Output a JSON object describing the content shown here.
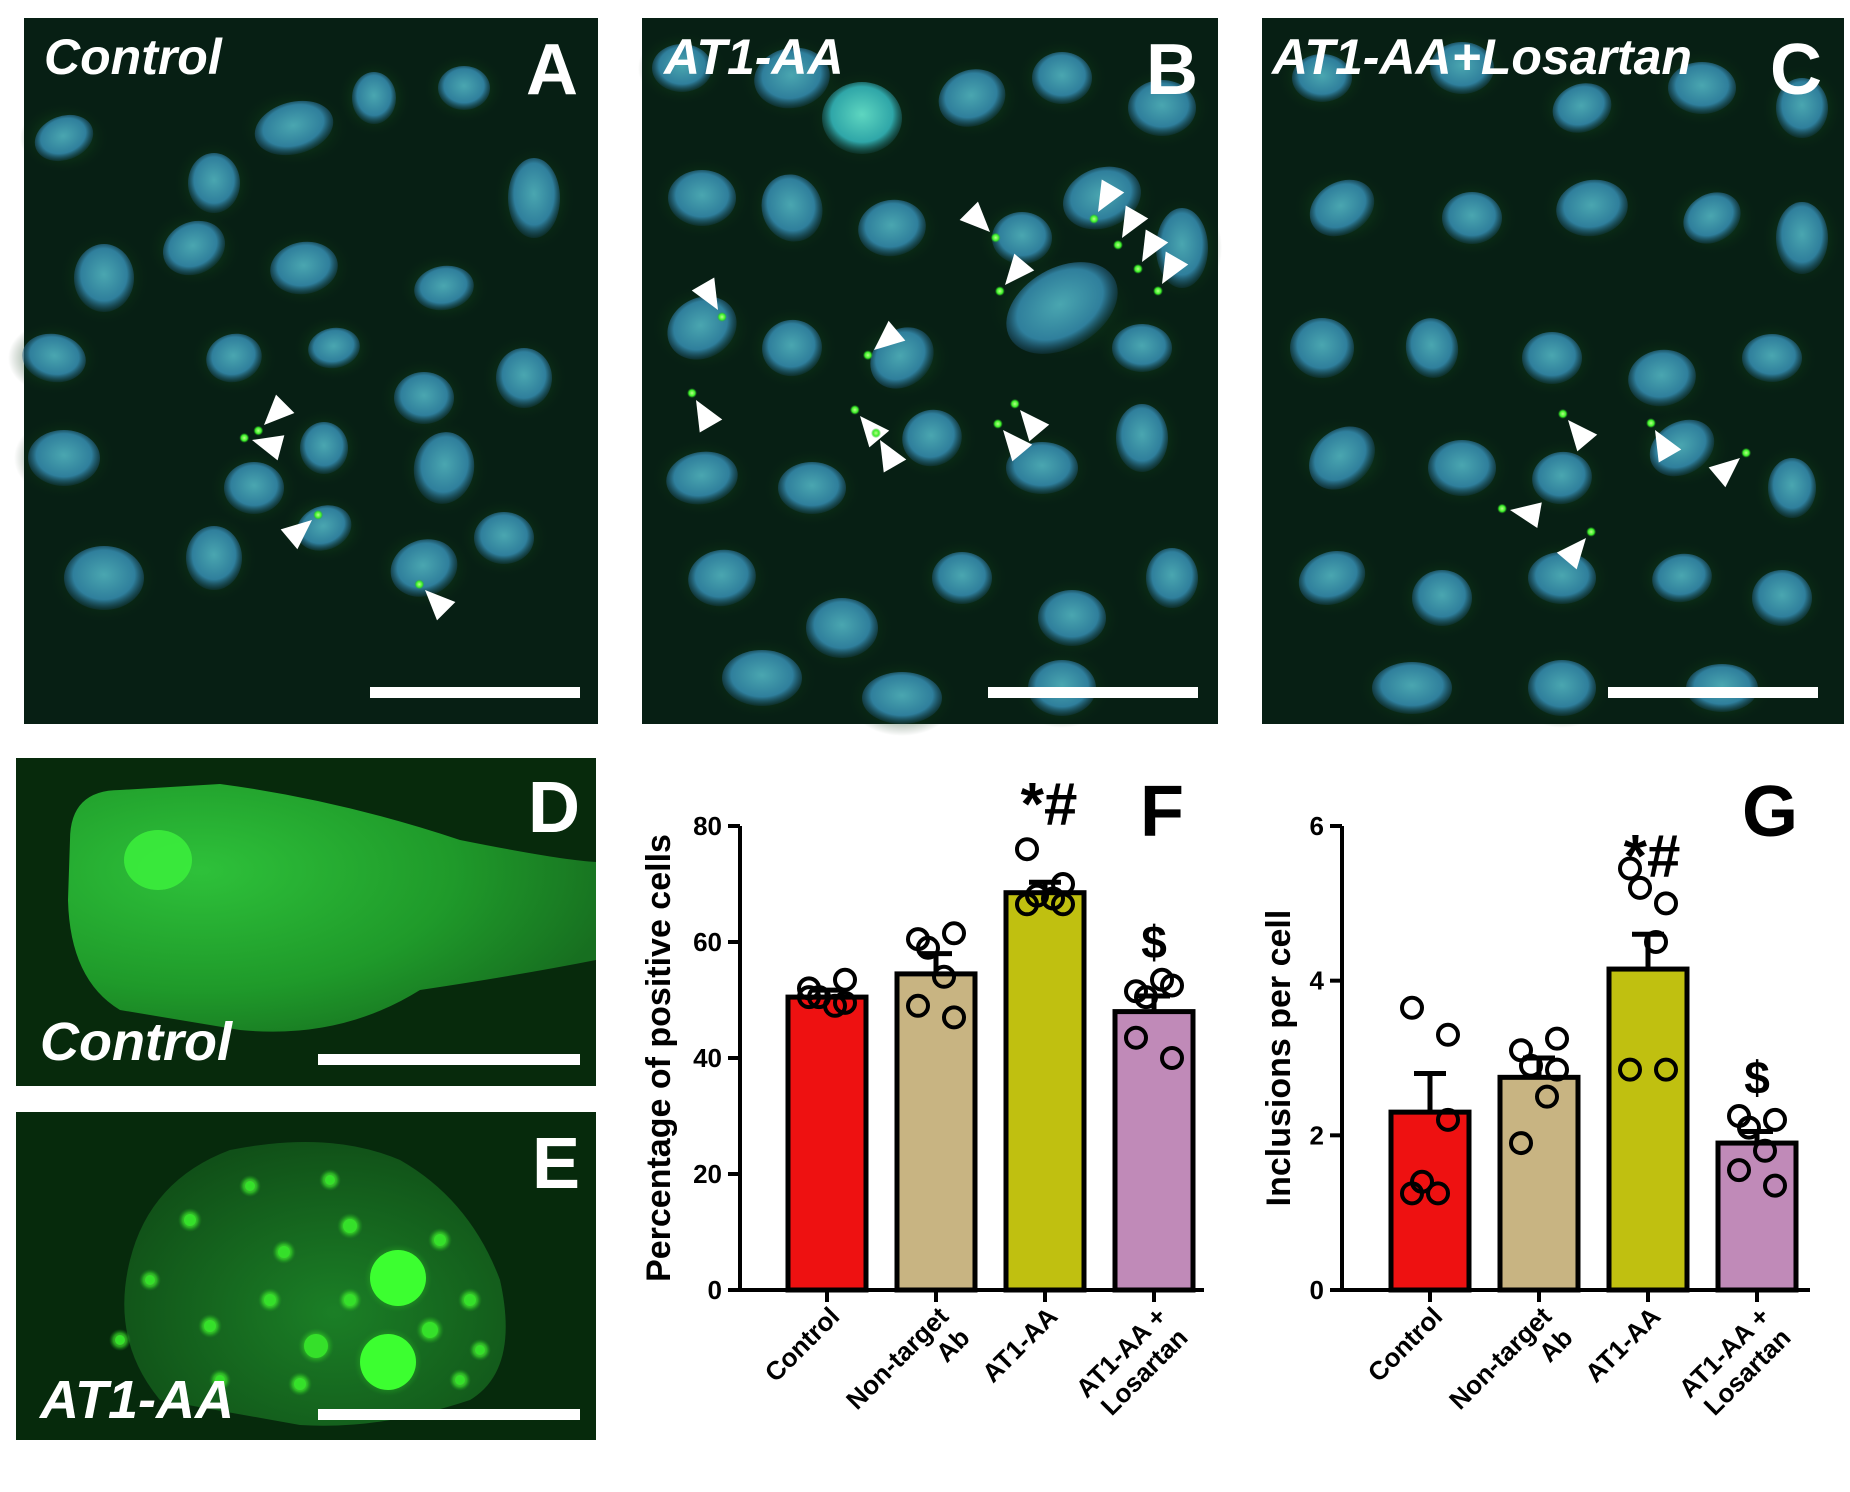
{
  "panels": {
    "A": {
      "letter": "A",
      "label": "Control"
    },
    "B": {
      "letter": "B",
      "label": "AT1-AA"
    },
    "C": {
      "letter": "C",
      "label": "AT1-AA+Losartan"
    },
    "D": {
      "letter": "D",
      "label": "Control"
    },
    "E": {
      "letter": "E",
      "label": "AT1-AA"
    }
  },
  "colors": {
    "control": "#ee1111",
    "nontarget": "#c8b482",
    "at1aa": "#c0c010",
    "losartan": "#c08ab8"
  },
  "chart_data": [
    {
      "panel": "F",
      "type": "bar",
      "categories": [
        [
          "Control"
        ],
        [
          "Non-target",
          "Ab"
        ],
        [
          "AT1-AA"
        ],
        [
          "AT1-AA +",
          "Losartan"
        ]
      ],
      "values": [
        50.5,
        54.5,
        68.5,
        48
      ],
      "sem": [
        1.2,
        3.5,
        1.8,
        2.7
      ],
      "points": [
        [
          52,
          53.5,
          50.5,
          49,
          50.5,
          49.5
        ],
        [
          60.5,
          61.5,
          59,
          54,
          49,
          47
        ],
        [
          76,
          70,
          68,
          67.5,
          66.5,
          66.5
        ],
        [
          51.5,
          52.5,
          50.5,
          53.5,
          43.5,
          40
        ]
      ],
      "ylabel": "Percentage of positive cells",
      "ylim": [
        0,
        80
      ],
      "yticks": [
        0,
        20,
        40,
        60,
        80
      ],
      "significance": [
        "",
        "",
        "*#",
        "$"
      ]
    },
    {
      "panel": "G",
      "type": "bar",
      "categories": [
        [
          "Control"
        ],
        [
          "Non-target",
          "Ab"
        ],
        [
          "AT1-AA"
        ],
        [
          "AT1-AA +",
          "Losartan"
        ]
      ],
      "values": [
        2.3,
        2.75,
        4.15,
        1.9
      ],
      "sem": [
        0.5,
        0.25,
        0.45,
        0.15
      ],
      "points": [
        [
          3.65,
          3.3,
          1.4,
          1.25,
          1.25,
          2.2
        ],
        [
          3.1,
          3.25,
          2.9,
          2.5,
          1.9,
          2.85
        ],
        [
          5.45,
          5.0,
          5.2,
          4.5,
          2.85,
          2.85
        ],
        [
          2.25,
          2.2,
          2.1,
          1.8,
          1.55,
          1.35
        ]
      ],
      "ylabel": "Inclusions per cell",
      "ylim": [
        0,
        6
      ],
      "yticks": [
        0,
        2,
        4,
        6
      ],
      "significance": [
        "",
        "",
        "*#",
        "$"
      ]
    }
  ]
}
